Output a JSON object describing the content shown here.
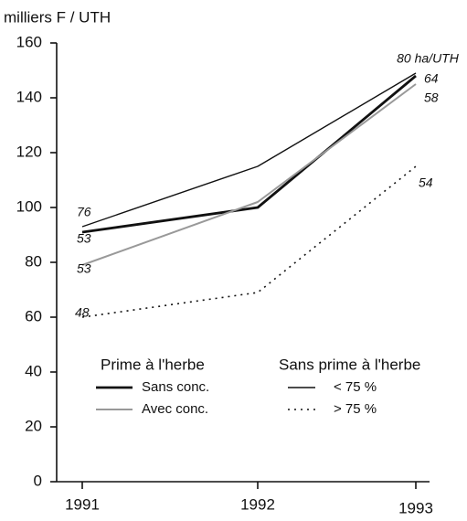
{
  "chart_data": {
    "type": "line",
    "y_label": "milliers F /  UTH",
    "categories": [
      "1991",
      "1992",
      "1993"
    ],
    "ylim": [
      0,
      160
    ],
    "yticks": [
      0,
      20,
      40,
      60,
      80,
      100,
      120,
      140,
      160
    ],
    "legend_groups": [
      "Prime à l'herbe",
      "Sans prime à l'herbe"
    ],
    "series": [
      {
        "name": "Sans conc.",
        "group": 0,
        "color": "#111111",
        "style": "thick",
        "values": [
          91,
          100,
          148
        ]
      },
      {
        "name": "Avec conc.",
        "group": 0,
        "color": "#999999",
        "style": "medium",
        "values": [
          79,
          102,
          145
        ]
      },
      {
        "name": "< 75 %",
        "group": 1,
        "color": "#111111",
        "style": "thin",
        "values": [
          93,
          115,
          149
        ]
      },
      {
        "name": "> 75 %",
        "group": 1,
        "color": "#111111",
        "style": "dotted",
        "values": [
          60,
          69,
          115
        ]
      }
    ],
    "annotations": [
      "76",
      "53",
      "53",
      "48",
      "80 ha/UTH",
      "64",
      "58",
      "54"
    ]
  }
}
